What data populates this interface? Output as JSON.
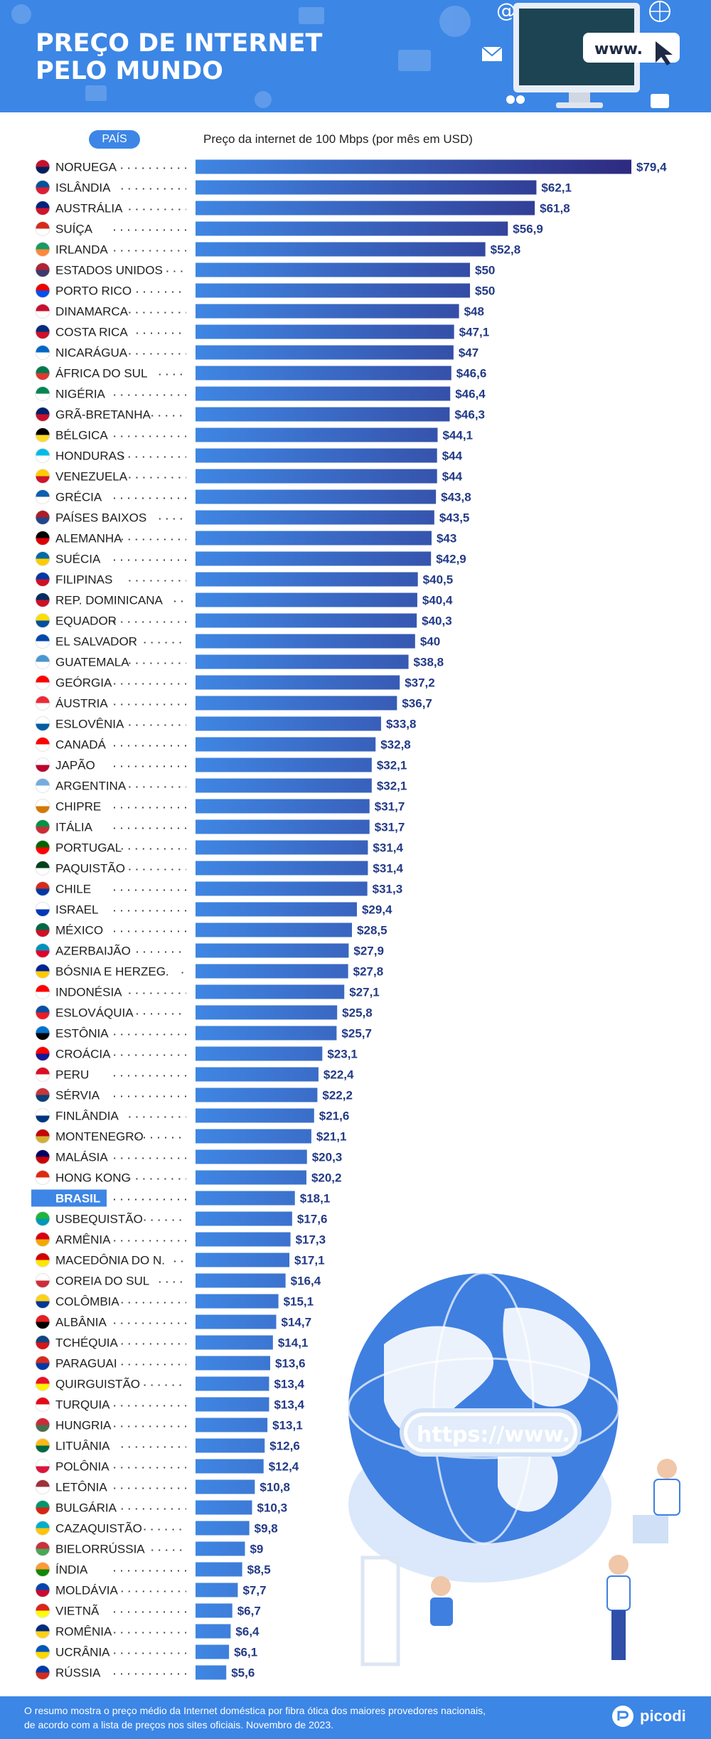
{
  "header": {
    "title_line1": "PREÇO DE INTERNET",
    "title_line2": "PELO MUNDO",
    "screen_text": "www."
  },
  "chart_data": {
    "type": "bar",
    "orientation": "horizontal",
    "category_header": "PAÍS",
    "title": "Preço da internet de 100 Mbps (por mês em USD)",
    "value_prefix": "$",
    "highlight": "BRASIL",
    "colors": {
      "bar_start": "#3f86e3",
      "bar_end": "#2e2a80",
      "label": "#233a86",
      "highlight_bg": "#3d86e6"
    },
    "categories": [
      "NORUEGA",
      "ISLÂNDIA",
      "AUSTRÁLIA",
      "SUÍÇA",
      "IRLANDA",
      "ESTADOS UNIDOS",
      "PORTO RICO",
      "DINAMARCA",
      "COSTA RICA",
      "NICARÁGUA",
      "ÁFRICA DO SUL",
      "NIGÉRIA",
      "GRÃ-BRETANHA",
      "BÉLGICA",
      "HONDURAS",
      "VENEZUELA",
      "GRÉCIA",
      "PAÍSES BAIXOS",
      "ALEMANHA",
      "SUÉCIA",
      "FILIPINAS",
      "REP. DOMINICANA",
      "EQUADOR",
      "EL SALVADOR",
      "GUATEMALA",
      "GEÓRGIA",
      "ÁUSTRIA",
      "ESLOVÊNIA",
      "CANADÁ",
      "JAPÃO",
      "ARGENTINA",
      "CHIPRE",
      "ITÁLIA",
      "PORTUGAL",
      "PAQUISTÃO",
      "CHILE",
      "ISRAEL",
      "MÉXICO",
      "AZERBAIJÃO",
      "BÓSNIA E HERZEG.",
      "INDONÉSIA",
      "ESLOVÁQUIA",
      "ESTÔNIA",
      "CROÁCIA",
      "PERU",
      "SÉRVIA",
      "FINLÂNDIA",
      "MONTENEGRO",
      "MALÁSIA",
      "HONG KONG",
      "BRASIL",
      "USBEQUISTÃO",
      "ARMÊNIA",
      "MACEDÔNIA DO N.",
      "COREIA DO SUL",
      "COLÔMBIA",
      "ALBÂNIA",
      "TCHÉQUIA",
      "PARAGUAI",
      "QUIRGUISTÃO",
      "TURQUIA",
      "HUNGRIA",
      "LITUÂNIA",
      "POLÔNIA",
      "LETÔNIA",
      "BULGÁRIA",
      "CAZAQUISTÃO",
      "BIELORRÚSSIA",
      "ÍNDIA",
      "MOLDÁVIA",
      "VIETNÃ",
      "ROMÊNIA",
      "UCRÂNIA",
      "RÚSSIA"
    ],
    "values": [
      79.4,
      62.1,
      61.8,
      56.9,
      52.8,
      50,
      50,
      48,
      47.1,
      47,
      46.6,
      46.4,
      46.3,
      44.1,
      44,
      44,
      43.8,
      43.5,
      43,
      42.9,
      40.5,
      40.4,
      40.3,
      40,
      38.8,
      37.2,
      36.7,
      33.8,
      32.8,
      32.1,
      32.1,
      31.7,
      31.7,
      31.4,
      31.4,
      31.3,
      29.4,
      28.5,
      27.9,
      27.8,
      27.1,
      25.8,
      25.7,
      23.1,
      22.4,
      22.2,
      21.6,
      21.1,
      20.3,
      20.2,
      18.1,
      17.6,
      17.3,
      17.1,
      16.4,
      15.1,
      14.7,
      14.1,
      13.6,
      13.4,
      13.4,
      13.1,
      12.6,
      12.4,
      10.8,
      10.3,
      9.8,
      9,
      8.5,
      7.7,
      6.7,
      6.4,
      6.1,
      5.6
    ],
    "value_labels": [
      "$79,4",
      "$62,1",
      "$61,8",
      "$56,9",
      "$52,8",
      "$50",
      "$50",
      "$48",
      "$47,1",
      "$47",
      "$46,6",
      "$46,4",
      "$46,3",
      "$44,1",
      "$44",
      "$44",
      "$43,8",
      "$43,5",
      "$43",
      "$42,9",
      "$40,5",
      "$40,4",
      "$40,3",
      "$40",
      "$38,8",
      "$37,2",
      "$36,7",
      "$33,8",
      "$32,8",
      "$32,1",
      "$32,1",
      "$31,7",
      "$31,7",
      "$31,4",
      "$31,4",
      "$31,3",
      "$29,4",
      "$28,5",
      "$27,9",
      "$27,8",
      "$27,1",
      "$25,8",
      "$25,7",
      "$23,1",
      "$22,4",
      "$22,2",
      "$21,6",
      "$21,1",
      "$20,3",
      "$20,2",
      "$18,1",
      "$17,6",
      "$17,3",
      "$17,1",
      "$16,4",
      "$15,1",
      "$14,7",
      "$14,1",
      "$13,6",
      "$13,4",
      "$13,4",
      "$13,1",
      "$12,6",
      "$12,4",
      "$10,8",
      "$10,3",
      "$9,8",
      "$9",
      "$8,5",
      "$7,7",
      "$6,7",
      "$6,4",
      "$6,1",
      "$5,6"
    ],
    "flag_colors": [
      [
        "#c8102e",
        "#00205b"
      ],
      [
        "#02529c",
        "#dc1e35"
      ],
      [
        "#00247d",
        "#cf142b"
      ],
      [
        "#d52b1e",
        "#ffffff"
      ],
      [
        "#169b62",
        "#ff883e"
      ],
      [
        "#b22234",
        "#3c3b6e"
      ],
      [
        "#ed0000",
        "#0050f0"
      ],
      [
        "#c8102e",
        "#ffffff"
      ],
      [
        "#002b7f",
        "#ce1126"
      ],
      [
        "#0067c6",
        "#ffffff"
      ],
      [
        "#007a4d",
        "#de3831"
      ],
      [
        "#008751",
        "#ffffff"
      ],
      [
        "#012169",
        "#c8102e"
      ],
      [
        "#000000",
        "#fdda24"
      ],
      [
        "#00bce4",
        "#ffffff"
      ],
      [
        "#ffcc00",
        "#cf142b"
      ],
      [
        "#0d5eaf",
        "#ffffff"
      ],
      [
        "#ae1c28",
        "#21468b"
      ],
      [
        "#000000",
        "#dd0000"
      ],
      [
        "#006aa7",
        "#fecc00"
      ],
      [
        "#0038a8",
        "#ce1126"
      ],
      [
        "#002d62",
        "#ce1126"
      ],
      [
        "#ffdd00",
        "#034ea2"
      ],
      [
        "#0047ab",
        "#ffffff"
      ],
      [
        "#4997d0",
        "#ffffff"
      ],
      [
        "#ff0000",
        "#ffffff"
      ],
      [
        "#ed2939",
        "#ffffff"
      ],
      [
        "#ffffff",
        "#005da4"
      ],
      [
        "#ff0000",
        "#ffffff"
      ],
      [
        "#ffffff",
        "#bc002d"
      ],
      [
        "#74acdf",
        "#ffffff"
      ],
      [
        "#ffffff",
        "#d57800"
      ],
      [
        "#009246",
        "#ce2b37"
      ],
      [
        "#006600",
        "#ff0000"
      ],
      [
        "#01411c",
        "#ffffff"
      ],
      [
        "#d52b1e",
        "#0039a6"
      ],
      [
        "#ffffff",
        "#0038b8"
      ],
      [
        "#006847",
        "#ce1126"
      ],
      [
        "#0092bc",
        "#e4002b"
      ],
      [
        "#002395",
        "#fecb00"
      ],
      [
        "#ff0000",
        "#ffffff"
      ],
      [
        "#0b4ea2",
        "#ee1c25"
      ],
      [
        "#0072ce",
        "#000000"
      ],
      [
        "#ff0000",
        "#171796"
      ],
      [
        "#d91023",
        "#ffffff"
      ],
      [
        "#c6363c",
        "#0c4076"
      ],
      [
        "#ffffff",
        "#003580"
      ],
      [
        "#c40308",
        "#d4af37"
      ],
      [
        "#010066",
        "#cc0001"
      ],
      [
        "#de2910",
        "#ffffff"
      ],
      [
        "#009c3b",
        "#ffdf00"
      ],
      [
        "#1eb53a",
        "#0099b5"
      ],
      [
        "#d90012",
        "#f2a800"
      ],
      [
        "#d20000",
        "#ffe600"
      ],
      [
        "#ffffff",
        "#cd2e3a"
      ],
      [
        "#fcd116",
        "#003893"
      ],
      [
        "#e41e20",
        "#000000"
      ],
      [
        "#11457e",
        "#d7141a"
      ],
      [
        "#d52b1e",
        "#0038a8"
      ],
      [
        "#e8112d",
        "#ffef00"
      ],
      [
        "#e30a17",
        "#ffffff"
      ],
      [
        "#ce2939",
        "#477050"
      ],
      [
        "#fdb913",
        "#006a44"
      ],
      [
        "#ffffff",
        "#dc143c"
      ],
      [
        "#9e3039",
        "#ffffff"
      ],
      [
        "#00966e",
        "#d62612"
      ],
      [
        "#00afca",
        "#fec50c"
      ],
      [
        "#c8313e",
        "#4aa657"
      ],
      [
        "#ff9933",
        "#138808"
      ],
      [
        "#0046ae",
        "#cc092f"
      ],
      [
        "#da251d",
        "#ffff00"
      ],
      [
        "#002b7f",
        "#fcd116"
      ],
      [
        "#0057b7",
        "#ffd700"
      ],
      [
        "#0039a6",
        "#d52b1e"
      ]
    ]
  },
  "footer": {
    "footnote_line1": "O resumo mostra o preço médio da Internet doméstica por fibra ótica dos maiores provedores nacionais,",
    "footnote_line2": "de acordo com a lista de preços nos sites oficiais. Novembro de 2023.",
    "brand": "picodi"
  },
  "illustration": {
    "url_text": "https://www."
  }
}
